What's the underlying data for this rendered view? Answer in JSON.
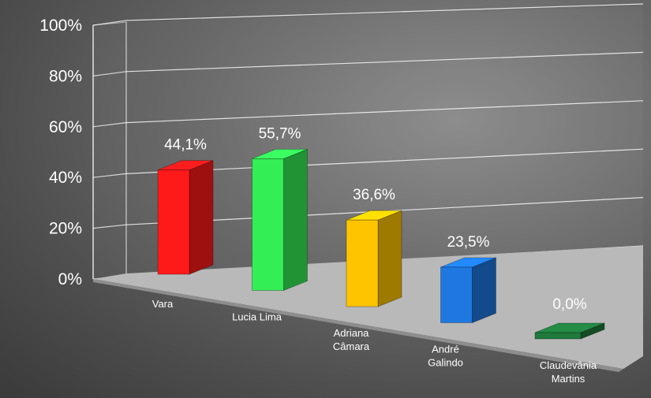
{
  "chart_data": {
    "type": "bar",
    "style": "3d-column",
    "categories": [
      [
        "Vara"
      ],
      [
        "Lucia Lima"
      ],
      [
        "Adriana",
        "Câmara"
      ],
      [
        "André",
        "Galindo"
      ],
      [
        "Claudevânia",
        "Martins"
      ]
    ],
    "values": [
      44.1,
      55.7,
      36.6,
      23.5,
      0.0
    ],
    "data_labels": [
      "44,1%",
      "55,7%",
      "36,6%",
      "23,5%",
      "0,0%"
    ],
    "y_ticks": [
      "0%",
      "20%",
      "40%",
      "60%",
      "80%",
      "100%"
    ],
    "ylim": [
      0,
      100
    ],
    "grid": true,
    "legend": "none",
    "bar_colors": [
      "#ff1a1a",
      "#33ee55",
      "#ffc400",
      "#1f78e0",
      "#1f7a3c"
    ]
  }
}
